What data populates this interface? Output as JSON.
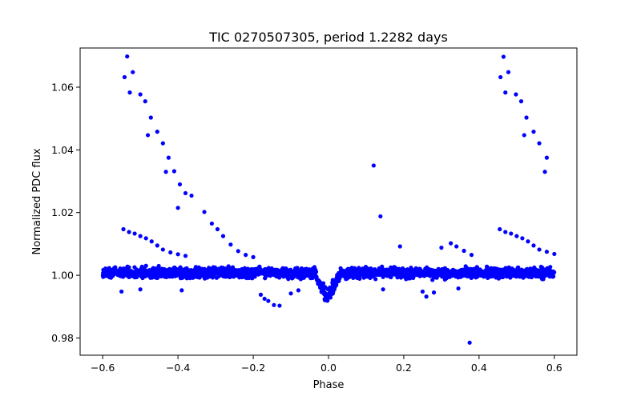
{
  "chart_data": {
    "type": "scatter",
    "title": "TIC 0270507305, period 1.2282 days",
    "xlabel": "Phase",
    "ylabel": "Normalized PDC flux",
    "xlim": [
      -0.66,
      0.66
    ],
    "ylim": [
      0.9745,
      1.0725
    ],
    "xticks": [
      -0.6,
      -0.4,
      -0.2,
      0.0,
      0.2,
      0.4,
      0.6
    ],
    "xtick_labels": [
      "−0.6",
      "−0.4",
      "−0.2",
      "0.0",
      "0.2",
      "0.4",
      "0.6"
    ],
    "yticks": [
      0.98,
      1.0,
      1.02,
      1.04,
      1.06
    ],
    "ytick_labels": [
      "0.98",
      "1.00",
      "1.02",
      "1.04",
      "1.06"
    ],
    "grid": false,
    "marker_color": "#0000ff",
    "series": [
      {
        "points": [
          [
            -0.535,
            1.0698
          ],
          [
            -0.542,
            1.0632
          ],
          [
            -0.52,
            1.0648
          ],
          [
            -0.528,
            1.0583
          ],
          [
            -0.5,
            1.0577
          ],
          [
            -0.487,
            1.0555
          ],
          [
            -0.472,
            1.0503
          ],
          [
            -0.48,
            1.0447
          ],
          [
            -0.455,
            1.0458
          ],
          [
            -0.44,
            1.0421
          ],
          [
            -0.425,
            1.0375
          ],
          [
            -0.432,
            1.033
          ],
          [
            -0.41,
            1.0332
          ],
          [
            -0.395,
            1.029
          ],
          [
            -0.38,
            1.0262
          ],
          [
            -0.364,
            1.0254
          ],
          [
            -0.4,
            1.0215
          ],
          [
            -0.33,
            1.0202
          ],
          [
            -0.31,
            1.0165
          ],
          [
            -0.295,
            1.0147
          ],
          [
            -0.28,
            1.0125
          ],
          [
            -0.26,
            1.0098
          ],
          [
            -0.24,
            1.0077
          ],
          [
            -0.22,
            1.0065
          ],
          [
            -0.2,
            1.0058
          ],
          [
            -0.545,
            1.0147
          ],
          [
            -0.53,
            1.0138
          ],
          [
            -0.515,
            1.0133
          ],
          [
            -0.5,
            1.0125
          ],
          [
            -0.485,
            1.0118
          ],
          [
            -0.47,
            1.0108
          ],
          [
            -0.455,
            1.0095
          ],
          [
            -0.44,
            1.0082
          ],
          [
            -0.42,
            1.0073
          ],
          [
            -0.4,
            1.0067
          ],
          [
            -0.38,
            1.0062
          ],
          [
            -0.55,
            0.9948
          ],
          [
            -0.5,
            0.9955
          ],
          [
            -0.39,
            0.9952
          ],
          [
            -0.18,
            0.9938
          ],
          [
            -0.17,
            0.9925
          ],
          [
            -0.16,
            0.9918
          ],
          [
            -0.145,
            0.9905
          ],
          [
            -0.13,
            0.9903
          ],
          [
            -0.1,
            0.9942
          ],
          [
            -0.08,
            0.9952
          ],
          [
            0.12,
            1.035
          ],
          [
            0.138,
            1.0188
          ],
          [
            0.19,
            1.0092
          ],
          [
            0.3,
            1.0088
          ],
          [
            0.325,
            1.0102
          ],
          [
            0.34,
            1.0092
          ],
          [
            0.36,
            1.0078
          ],
          [
            0.38,
            1.0065
          ],
          [
            0.25,
            0.9948
          ],
          [
            0.26,
            0.9932
          ],
          [
            0.28,
            0.9945
          ],
          [
            0.345,
            0.9958
          ],
          [
            0.375,
            0.9785
          ],
          [
            0.145,
            0.9955
          ],
          [
            0.465,
            1.0697
          ],
          [
            0.457,
            1.0632
          ],
          [
            0.478,
            1.0648
          ],
          [
            0.47,
            1.0583
          ],
          [
            0.498,
            1.0577
          ],
          [
            0.512,
            1.0555
          ],
          [
            0.526,
            1.0503
          ],
          [
            0.52,
            1.0447
          ],
          [
            0.545,
            1.0458
          ],
          [
            0.56,
            1.0421
          ],
          [
            0.58,
            1.0375
          ],
          [
            0.575,
            1.033
          ],
          [
            0.455,
            1.0147
          ],
          [
            0.47,
            1.0138
          ],
          [
            0.485,
            1.0133
          ],
          [
            0.5,
            1.0125
          ],
          [
            0.515,
            1.0118
          ],
          [
            0.53,
            1.0108
          ],
          [
            0.545,
            1.0095
          ],
          [
            0.56,
            1.0082
          ],
          [
            0.58,
            1.0075
          ],
          [
            0.6,
            1.0068
          ]
        ]
      }
    ]
  }
}
